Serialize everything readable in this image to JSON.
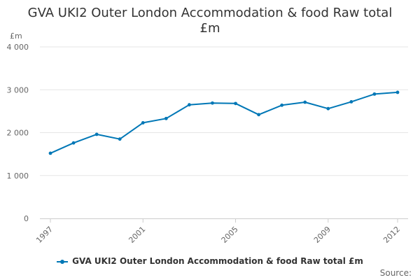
{
  "chart_data": {
    "type": "line",
    "title_lines": [
      "GVA UKI2 Outer London Accommodation & food Raw total",
      "£m"
    ],
    "ylabel": "£m",
    "ylim": [
      0,
      4000
    ],
    "y_ticks": [
      {
        "value": 0,
        "label": "0"
      },
      {
        "value": 1000,
        "label": "1 000"
      },
      {
        "value": 2000,
        "label": "2 000"
      },
      {
        "value": 3000,
        "label": "3 000"
      },
      {
        "value": 4000,
        "label": "4 000"
      }
    ],
    "xlim": [
      1997,
      2012
    ],
    "x_ticks": [
      {
        "value": 1997,
        "label": "1997"
      },
      {
        "value": 2001,
        "label": "2001"
      },
      {
        "value": 2005,
        "label": "2005"
      },
      {
        "value": 2009,
        "label": "2009"
      },
      {
        "value": 2012,
        "label": "2012"
      }
    ],
    "grid": true,
    "legend_position": "bottom",
    "series": [
      {
        "name": "GVA UKI2 Outer London Accommodation & food Raw total £m",
        "color": "#0077b6",
        "points": [
          {
            "x": 1997,
            "y": 1520
          },
          {
            "x": 1998,
            "y": 1760
          },
          {
            "x": 1999,
            "y": 1960
          },
          {
            "x": 2000,
            "y": 1850
          },
          {
            "x": 2001,
            "y": 2230
          },
          {
            "x": 2002,
            "y": 2330
          },
          {
            "x": 2003,
            "y": 2650
          },
          {
            "x": 2004,
            "y": 2690
          },
          {
            "x": 2005,
            "y": 2680
          },
          {
            "x": 2006,
            "y": 2420
          },
          {
            "x": 2007,
            "y": 2640
          },
          {
            "x": 2008,
            "y": 2710
          },
          {
            "x": 2009,
            "y": 2560
          },
          {
            "x": 2010,
            "y": 2720
          },
          {
            "x": 2011,
            "y": 2900
          },
          {
            "x": 2012,
            "y": 2940
          }
        ]
      }
    ]
  },
  "footer": {
    "source_label": "Source:"
  }
}
